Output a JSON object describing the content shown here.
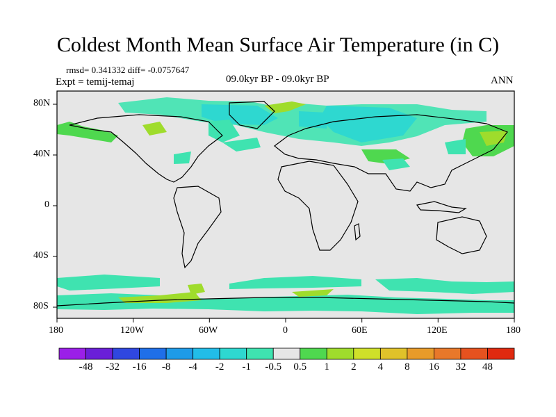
{
  "title": "Coldest Month Mean Surface Air Temperature (in C)",
  "stats": "rmsd= 0.341332 diff= -0.0757647",
  "expt": "Expt = temij-temaj",
  "period": "09.0kyr BP - 09.0kyr BP",
  "season": "ANN",
  "lat_labels": [
    "80N",
    "40N",
    "0",
    "40S",
    "80S"
  ],
  "lon_labels": [
    "180",
    "120W",
    "60W",
    "0",
    "60E",
    "120E",
    "180"
  ],
  "colorbar": {
    "colors": [
      "#9b1fe8",
      "#6a1fd8",
      "#2f47e0",
      "#1f6fe8",
      "#1e9be8",
      "#22bde8",
      "#2ed8d0",
      "#3fe3b0",
      "#e6e6e6",
      "#4fd84f",
      "#9fdc2c",
      "#cfe02a",
      "#e0c22a",
      "#e89b2a",
      "#e8782a",
      "#e6521f",
      "#e02a10"
    ],
    "labels": [
      "-48",
      "-32",
      "-16",
      "-8",
      "-4",
      "-2",
      "-1",
      "-0.5",
      "0.5",
      "1",
      "2",
      "4",
      "8",
      "16",
      "32",
      "48"
    ]
  }
}
